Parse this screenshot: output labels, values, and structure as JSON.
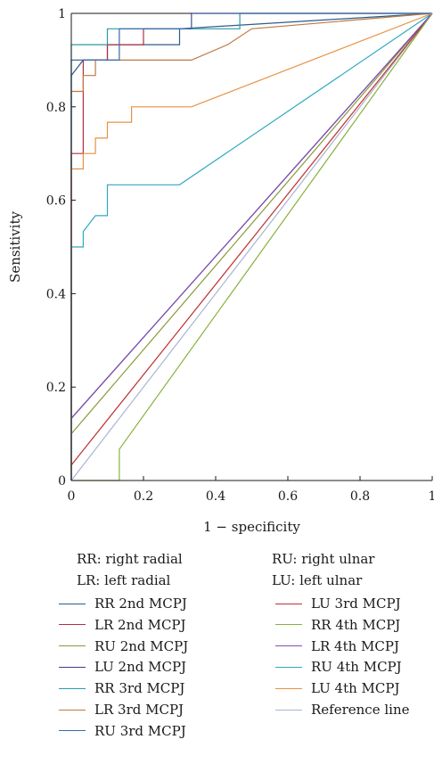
{
  "chart_data": {
    "type": "line",
    "xlabel": "1 − specificity",
    "ylabel": "Sensitivity",
    "xlim": [
      0,
      1
    ],
    "ylim": [
      0,
      1
    ],
    "x_ticks": [
      "0",
      "0.2",
      "0.4",
      "0.6",
      "0.8",
      "1"
    ],
    "y_ticks": [
      "0",
      "0.2",
      "0.4",
      "0.6",
      "0.8",
      "1"
    ],
    "grid": false,
    "series": [
      {
        "name": "RR 2nd MCPJ",
        "color": "#2c5c8a",
        "x": [
          0,
          0,
          0.033,
          0.1,
          0.1,
          0.3,
          0.3,
          1
        ],
        "y": [
          0,
          0.867,
          0.9,
          0.9,
          0.933,
          0.933,
          0.967,
          1
        ]
      },
      {
        "name": "LR 2nd MCPJ",
        "color": "#b03040",
        "x": [
          0,
          0,
          0.033,
          0.033,
          0.1,
          0.1,
          0.2,
          0.2,
          0.333,
          0.333,
          1
        ],
        "y": [
          0,
          0.7,
          0.7,
          0.9,
          0.9,
          0.933,
          0.933,
          0.967,
          0.967,
          1,
          1
        ]
      },
      {
        "name": "RU 2nd MCPJ",
        "color": "#8a9a3a",
        "x": [
          0,
          1
        ],
        "y": [
          0.1,
          1
        ]
      },
      {
        "name": "LU 2nd MCPJ",
        "color": "#4a3a8a",
        "x": [
          0,
          1
        ],
        "y": [
          0.133,
          1
        ]
      },
      {
        "name": "RR 3rd MCPJ",
        "color": "#2a9aaa",
        "x": [
          0,
          0,
          0.1,
          0.1,
          0.467,
          0.467,
          1
        ],
        "y": [
          0,
          0.933,
          0.933,
          0.967,
          0.967,
          1,
          1
        ]
      },
      {
        "name": "LR 3rd MCPJ",
        "color": "#c07840",
        "x": [
          0,
          0,
          0.033,
          0.033,
          0.067,
          0.067,
          0.333,
          0.333,
          0.433,
          0.5,
          0.5,
          1
        ],
        "y": [
          0,
          0.833,
          0.833,
          0.867,
          0.867,
          0.9,
          0.9,
          0.9,
          0.933,
          0.967,
          0.967,
          1
        ]
      },
      {
        "name": "RU 3rd MCPJ",
        "color": "#3a6aaa",
        "x": [
          0,
          0,
          0.133,
          0.133,
          0.333,
          0.333,
          1
        ],
        "y": [
          0,
          0.9,
          0.9,
          0.967,
          0.967,
          1,
          1
        ]
      },
      {
        "name": "LU 3rd MCPJ",
        "color": "#c03030",
        "x": [
          0,
          1
        ],
        "y": [
          0.033,
          1
        ]
      },
      {
        "name": "RR 4th MCPJ",
        "color": "#8ab040",
        "x": [
          0,
          0.133,
          0.133,
          1
        ],
        "y": [
          0,
          0,
          0.067,
          1
        ]
      },
      {
        "name": "LR 4th MCPJ",
        "color": "#8050b0",
        "x": [
          0,
          1
        ],
        "y": [
          0.133,
          1
        ]
      },
      {
        "name": "RU 4th MCPJ",
        "color": "#30a8c0",
        "x": [
          0,
          0,
          0.033,
          0.033,
          0.067,
          0.067,
          0.1,
          0.1,
          0.3,
          1
        ],
        "y": [
          0,
          0.5,
          0.5,
          0.533,
          0.567,
          0.567,
          0.567,
          0.633,
          0.633,
          1
        ]
      },
      {
        "name": "LU 4th MCPJ",
        "color": "#e89040",
        "x": [
          0,
          0,
          0.033,
          0.033,
          0.067,
          0.067,
          0.1,
          0.1,
          0.167,
          0.167,
          0.333,
          1
        ],
        "y": [
          0,
          0.667,
          0.667,
          0.7,
          0.7,
          0.733,
          0.733,
          0.767,
          0.767,
          0.8,
          0.8,
          1
        ]
      },
      {
        "name": "Reference line",
        "color": "#a8b4d0",
        "x": [
          0,
          1
        ],
        "y": [
          0,
          1
        ]
      }
    ]
  },
  "legend": {
    "abbreviations": [
      "RR: right radial",
      "RU: right ulnar",
      "LR: left radial",
      "LU: left ulnar"
    ]
  }
}
